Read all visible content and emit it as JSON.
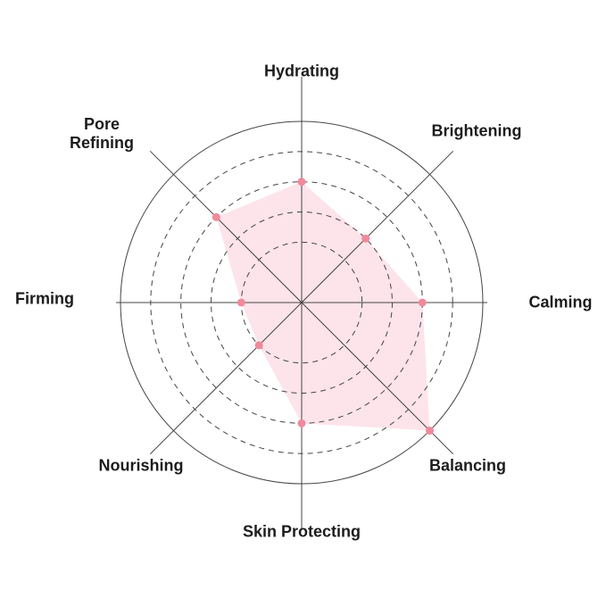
{
  "chart_data": {
    "type": "radar",
    "categories": [
      "Hydrating",
      "Brightening",
      "Calming",
      "Balancing",
      "Skin Protecting",
      "Nourishing",
      "Firming",
      "Pore Refining"
    ],
    "values": [
      4,
      3,
      4,
      6,
      4,
      2,
      2,
      4
    ],
    "range": [
      0,
      6
    ],
    "grid_rings": [
      2,
      3,
      4,
      5
    ],
    "outer_ring": 6,
    "fill_color": "#fde4ea",
    "point_color": "#f08a9b",
    "grid_color": "#444444",
    "legend": "none"
  }
}
